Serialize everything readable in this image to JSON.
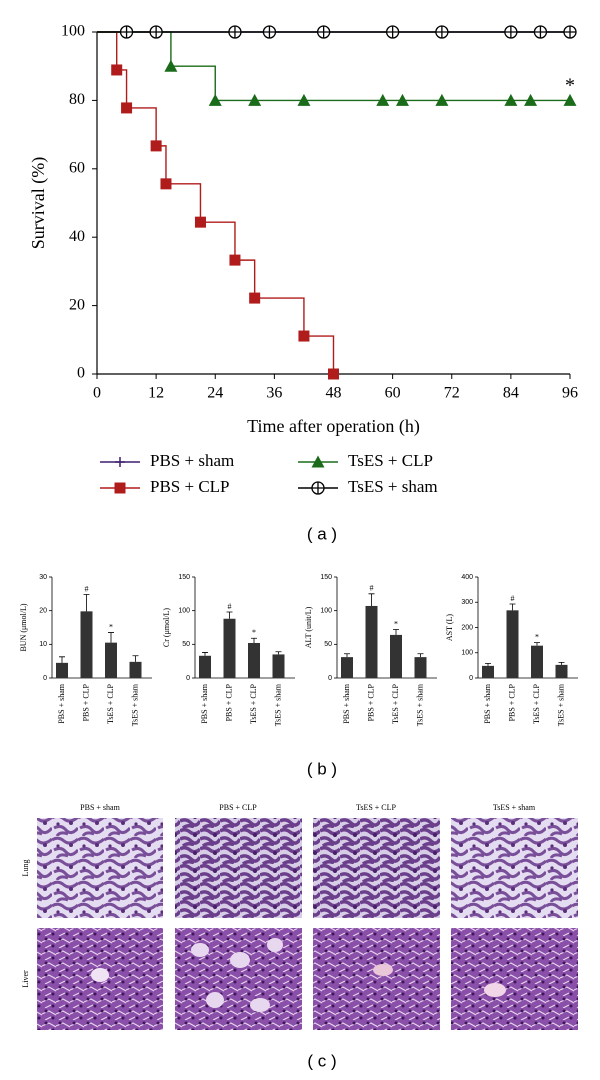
{
  "chart_data": [
    {
      "type": "line",
      "step": true,
      "xlabel": "Time after operation (h)",
      "ylabel": "Survival (%)",
      "xlim": [
        0,
        96
      ],
      "ylim": [
        0,
        100
      ],
      "xticks": [
        0,
        12,
        24,
        36,
        48,
        60,
        72,
        84,
        96
      ],
      "yticks": [
        0,
        20,
        40,
        60,
        80,
        100
      ],
      "series": [
        {
          "name": "PBS + sham",
          "color": "#3d1f6e",
          "marker": "plus",
          "x": [
            0,
            96
          ],
          "values": [
            100,
            100
          ]
        },
        {
          "name": "PBS + CLP",
          "color": "#b01c1c",
          "marker": "square",
          "x": [
            0,
            4,
            6,
            12,
            14,
            21,
            28,
            32,
            42,
            48
          ],
          "values": [
            100,
            88.9,
            77.8,
            66.7,
            55.6,
            44.4,
            33.3,
            22.2,
            11.1,
            0
          ]
        },
        {
          "name": "TsES + CLP",
          "color": "#1a6b1a",
          "marker": "triangle",
          "x": [
            0,
            15,
            24,
            32,
            42,
            58,
            62,
            70,
            84,
            88,
            96
          ],
          "values": [
            100,
            90,
            80,
            80,
            80,
            80,
            80,
            80,
            80,
            80,
            80
          ]
        },
        {
          "name": "TsES + sham",
          "color": "#000000",
          "marker": "circle",
          "x": [
            0,
            6,
            12,
            28,
            35,
            46,
            60,
            70,
            84,
            90,
            96
          ],
          "values": [
            100,
            100,
            100,
            100,
            100,
            100,
            100,
            100,
            100,
            100,
            100
          ]
        }
      ],
      "annotations": [
        {
          "text": "*",
          "x": 96,
          "y": 84
        }
      ],
      "legend": "bottom"
    },
    {
      "type": "bar",
      "ylabel": "BUN (μmol/L)",
      "categories": [
        "PBS + sham",
        "PBS + CLP",
        "TsES + CLP",
        "TsES + sham"
      ],
      "values": [
        4.5,
        19.8,
        10.5,
        4.8
      ],
      "errors": [
        1.8,
        5,
        3,
        1.8
      ],
      "annotations": [
        null,
        "#",
        "*",
        null
      ],
      "color": "#333333",
      "ylim": [
        0,
        30
      ],
      "yticks": [
        0,
        10,
        20,
        30
      ]
    },
    {
      "type": "bar",
      "ylabel": "Cr (μmol/L)",
      "categories": [
        "PBS + sham",
        "PBS + CLP",
        "TsES + CLP",
        "TsES + sham"
      ],
      "values": [
        33,
        88,
        52,
        35
      ],
      "errors": [
        5,
        10,
        7,
        4
      ],
      "annotations": [
        null,
        "#",
        "*",
        null
      ],
      "color": "#333333",
      "ylim": [
        0,
        150
      ],
      "yticks": [
        0,
        50,
        100,
        150
      ]
    },
    {
      "type": "bar",
      "ylabel": "ALT (unit/L)",
      "categories": [
        "PBS + sham",
        "PBS + CLP",
        "TsES + CLP",
        "TsES + sham"
      ],
      "values": [
        31,
        107,
        64,
        31
      ],
      "errors": [
        5,
        18,
        8,
        5
      ],
      "annotations": [
        null,
        "#",
        "*",
        null
      ],
      "color": "#333333",
      "ylim": [
        0,
        150
      ],
      "yticks": [
        0,
        50,
        100,
        150
      ]
    },
    {
      "type": "bar",
      "ylabel": "AST (L)",
      "categories": [
        "PBS + sham",
        "PBS + CLP",
        "TsES + CLP",
        "TsES + sham"
      ],
      "values": [
        48,
        268,
        128,
        52
      ],
      "errors": [
        10,
        25,
        12,
        10
      ],
      "annotations": [
        null,
        "#",
        "*",
        null
      ],
      "color": "#333333",
      "ylim": [
        0,
        400
      ],
      "yticks": [
        0,
        100,
        200,
        300,
        400
      ]
    }
  ],
  "panel_labels": [
    "( a )",
    "( b )",
    "( c )"
  ],
  "histology": {
    "columns": [
      "PBS + sham",
      "PBS + CLP",
      "TsES + CLP",
      "TsES + sham"
    ],
    "rows": [
      "Lung",
      "Liver"
    ]
  }
}
